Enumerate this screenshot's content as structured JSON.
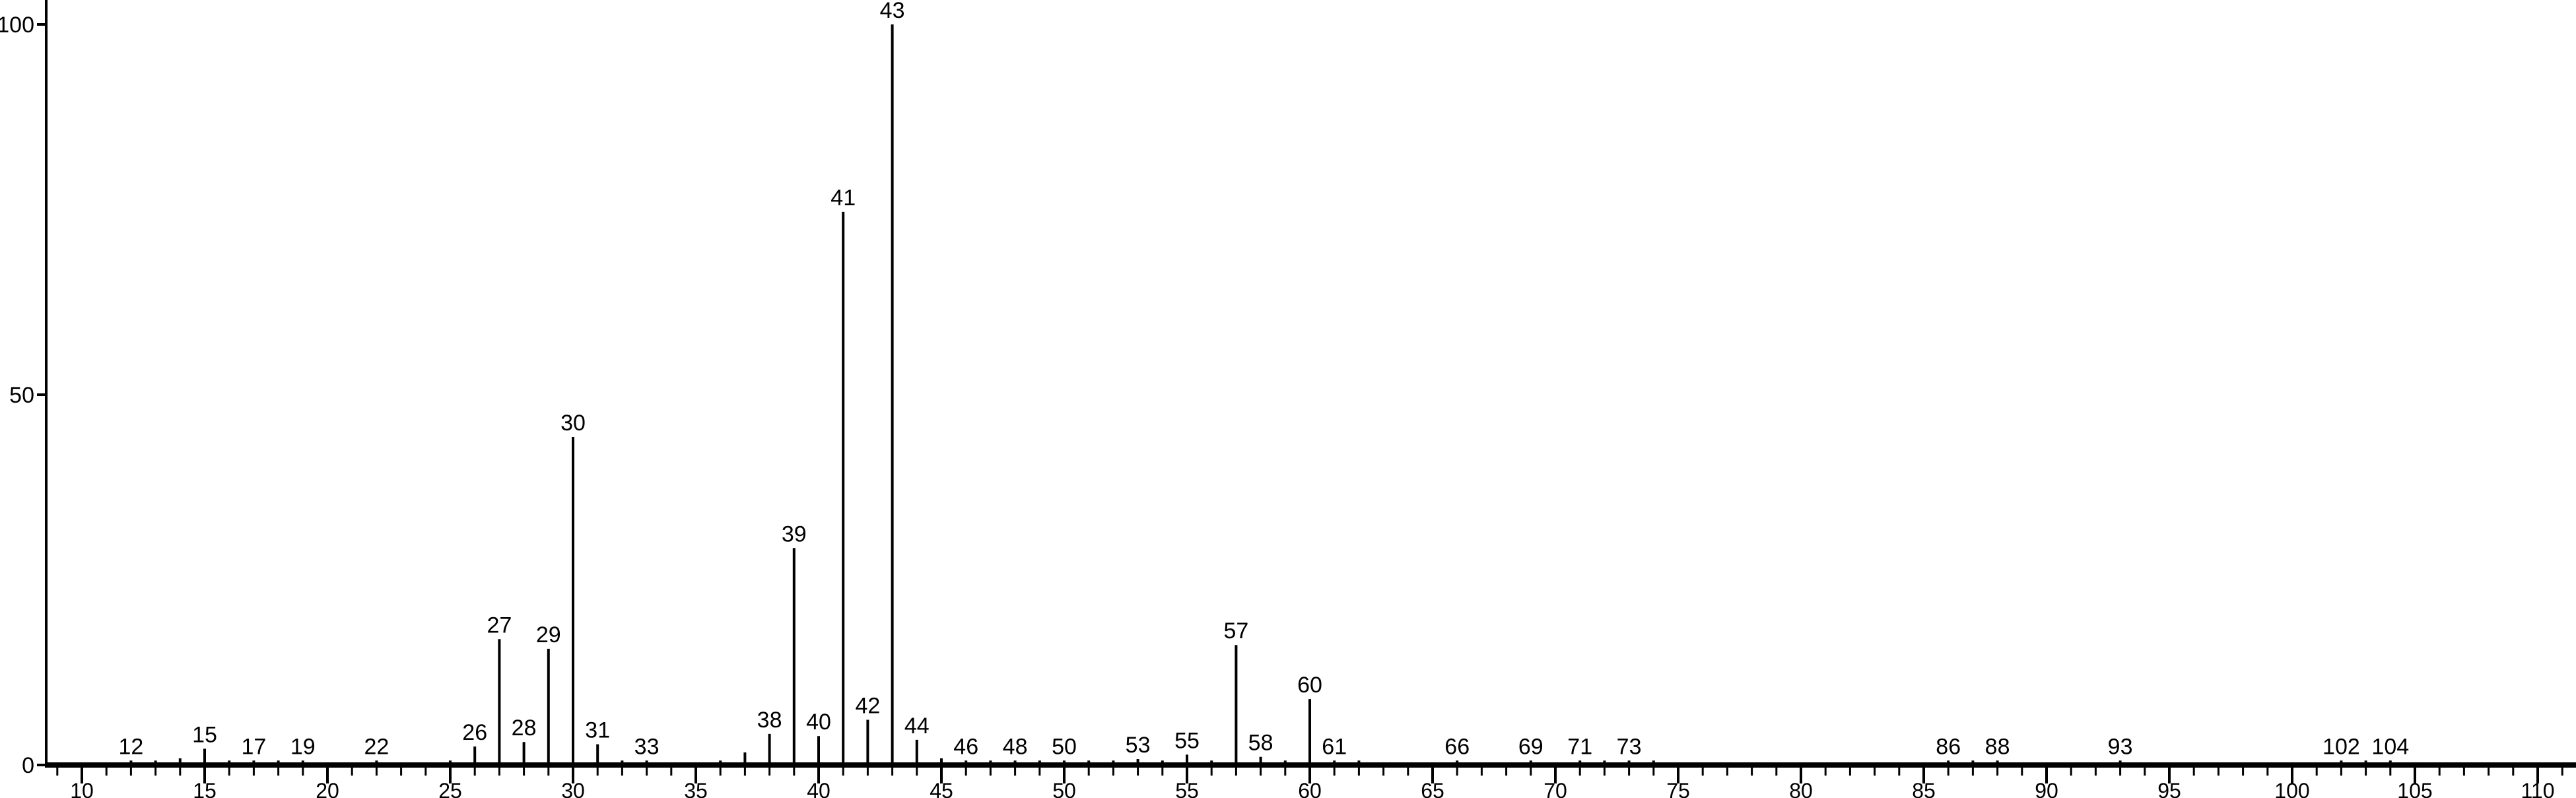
{
  "chart_data": {
    "type": "bar",
    "title": "",
    "xlabel": "",
    "ylabel": "",
    "xlim": [
      8.5,
      111.6
    ],
    "ylim": [
      0,
      100
    ],
    "grid": false,
    "x_ticks": [
      10,
      15,
      20,
      25,
      30,
      35,
      40,
      45,
      50,
      55,
      60,
      65,
      70,
      75,
      80,
      85,
      90,
      95,
      100,
      105,
      110
    ],
    "y_ticks": [
      0,
      50,
      100
    ],
    "peaks": [
      {
        "x": 12,
        "y": 0.6,
        "label": "12"
      },
      {
        "x": 13,
        "y": 0.6
      },
      {
        "x": 14,
        "y": 0.9
      },
      {
        "x": 15,
        "y": 2.2,
        "label": "15"
      },
      {
        "x": 16,
        "y": 0.6
      },
      {
        "x": 17,
        "y": 0.6,
        "label": "17"
      },
      {
        "x": 18,
        "y": 0.6
      },
      {
        "x": 19,
        "y": 0.6,
        "label": "19"
      },
      {
        "x": 22,
        "y": 0.6,
        "label": "22"
      },
      {
        "x": 25,
        "y": 0.6
      },
      {
        "x": 26,
        "y": 2.5,
        "label": "26"
      },
      {
        "x": 27,
        "y": 17,
        "label": "27"
      },
      {
        "x": 28,
        "y": 3.1,
        "label": "28"
      },
      {
        "x": 29,
        "y": 15.7,
        "label": "29"
      },
      {
        "x": 30,
        "y": 44.3,
        "label": "30"
      },
      {
        "x": 31,
        "y": 2.8,
        "label": "31"
      },
      {
        "x": 32,
        "y": 0.6
      },
      {
        "x": 33,
        "y": 0.6,
        "label": "33"
      },
      {
        "x": 36,
        "y": 0.6
      },
      {
        "x": 37,
        "y": 1.7
      },
      {
        "x": 38,
        "y": 4.2,
        "label": "38"
      },
      {
        "x": 39,
        "y": 29.3,
        "label": "39"
      },
      {
        "x": 40,
        "y": 3.9,
        "label": "40"
      },
      {
        "x": 41,
        "y": 74.7,
        "label": "41"
      },
      {
        "x": 42,
        "y": 6.1,
        "label": "42"
      },
      {
        "x": 43,
        "y": 100,
        "label": "43"
      },
      {
        "x": 44,
        "y": 3.4,
        "label": "44"
      },
      {
        "x": 45,
        "y": 0.9
      },
      {
        "x": 46,
        "y": 0.6,
        "label": "46"
      },
      {
        "x": 47,
        "y": 0.6
      },
      {
        "x": 48,
        "y": 0.6,
        "label": "48"
      },
      {
        "x": 49,
        "y": 0.6
      },
      {
        "x": 50,
        "y": 0.6,
        "label": "50"
      },
      {
        "x": 51,
        "y": 0.6
      },
      {
        "x": 52,
        "y": 0.6
      },
      {
        "x": 53,
        "y": 0.8,
        "label": "53"
      },
      {
        "x": 54,
        "y": 0.6
      },
      {
        "x": 55,
        "y": 1.4,
        "label": "55"
      },
      {
        "x": 56,
        "y": 0.6
      },
      {
        "x": 57,
        "y": 16.2,
        "label": "57"
      },
      {
        "x": 58,
        "y": 1.1,
        "label": "58"
      },
      {
        "x": 59,
        "y": 0.6
      },
      {
        "x": 60,
        "y": 8.9,
        "label": "60"
      },
      {
        "x": 61,
        "y": 0.6,
        "label": "61"
      },
      {
        "x": 62,
        "y": 0.6
      },
      {
        "x": 66,
        "y": 0.6,
        "label": "66"
      },
      {
        "x": 69,
        "y": 0.6,
        "label": "69"
      },
      {
        "x": 71,
        "y": 0.6,
        "label": "71"
      },
      {
        "x": 72,
        "y": 0.6
      },
      {
        "x": 73,
        "y": 0.6,
        "label": "73"
      },
      {
        "x": 74,
        "y": 0.6
      },
      {
        "x": 86,
        "y": 0.6,
        "label": "86"
      },
      {
        "x": 87,
        "y": 0.6
      },
      {
        "x": 88,
        "y": 0.6,
        "label": "88"
      },
      {
        "x": 93,
        "y": 0.6,
        "label": "93"
      },
      {
        "x": 102,
        "y": 0.6,
        "label": "102"
      },
      {
        "x": 103,
        "y": 0.6
      },
      {
        "x": 104,
        "y": 0.6,
        "label": "104"
      }
    ]
  }
}
